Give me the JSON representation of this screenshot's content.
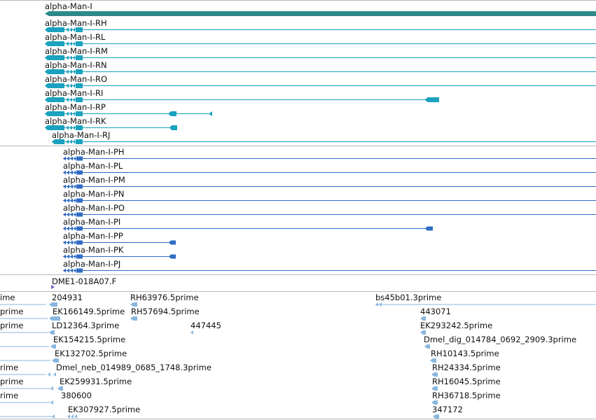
{
  "colors": {
    "gene": "#2e8a8a",
    "transcript": "#1ba2be",
    "protein": "#2f6cc4",
    "clone": "#7160c8",
    "est": "#8ab7df",
    "divider": "#b8b8b8"
  },
  "gene": {
    "label": "alpha-Man-I"
  },
  "transcripts": [
    {
      "label": "alpha-Man-I-RH"
    },
    {
      "label": "alpha-Man-I-RL"
    },
    {
      "label": "alpha-Man-I-RM"
    },
    {
      "label": "alpha-Man-I-RN"
    },
    {
      "label": "alpha-Man-I-RO"
    },
    {
      "label": "alpha-Man-I-RI"
    },
    {
      "label": "alpha-Man-I-RP"
    },
    {
      "label": "alpha-Man-I-RK"
    },
    {
      "label": "alpha-Man-I-RJ"
    }
  ],
  "proteins": [
    {
      "label": "alpha-Man-I-PH"
    },
    {
      "label": "alpha-Man-I-PL"
    },
    {
      "label": "alpha-Man-I-PM"
    },
    {
      "label": "alpha-Man-I-PN"
    },
    {
      "label": "alpha-Man-I-PO"
    },
    {
      "label": "alpha-Man-I-PI"
    },
    {
      "label": "alpha-Man-I-PP"
    },
    {
      "label": "alpha-Man-I-PK"
    },
    {
      "label": "alpha-Man-I-PJ"
    }
  ],
  "clone": {
    "label": "DME1-018A07.F"
  },
  "ests": [
    {
      "label": "ime"
    },
    {
      "label": "204931"
    },
    {
      "label": "RH63976.5prime"
    },
    {
      "label": "bs45b01.3prime"
    },
    {
      "label": "prime"
    },
    {
      "label": "EK166149.5prime"
    },
    {
      "label": "RH57694.5prime"
    },
    {
      "label": "443071"
    },
    {
      "label": "prime"
    },
    {
      "label": "LD12364.3prime"
    },
    {
      "label": "447445"
    },
    {
      "label": "EK293242.5prime"
    },
    {
      "label": "EK154215.5prime"
    },
    {
      "label": "Dmel_dig_014784_0692_2909.3prime"
    },
    {
      "label": "EK132702.5prime"
    },
    {
      "label": "RH10143.5prime"
    },
    {
      "label": "rime"
    },
    {
      "label": "Dmel_neb_014989_0685_1748.3prime"
    },
    {
      "label": "RH24334.5prime"
    },
    {
      "label": "prime"
    },
    {
      "label": "EK259931.5prime"
    },
    {
      "label": "RH16045.5prime"
    },
    {
      "label": "rime"
    },
    {
      "label": "380600"
    },
    {
      "label": "RH36718.5prime"
    },
    {
      "label": "EK307927.5prime"
    },
    {
      "label": "347172"
    }
  ]
}
